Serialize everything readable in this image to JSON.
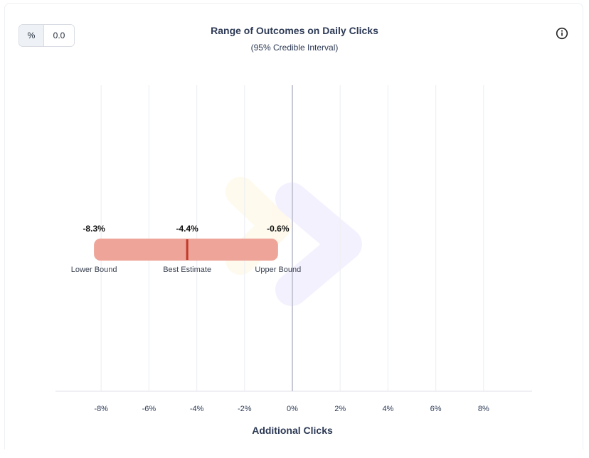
{
  "toggle": {
    "unit_label": "%",
    "value_label": "0.0"
  },
  "header": {
    "title": "Range of Outcomes on Daily Clicks",
    "subtitle": "(95% Credible Interval)",
    "info_icon": "info-icon"
  },
  "colors": {
    "bar_fill": "#eea498",
    "estimate_line": "#c0392b",
    "zero_line": "#c7cad6",
    "grid": "#eef0f4",
    "axis_text": "#2d3a55"
  },
  "chart_data": {
    "type": "interval",
    "title": "Range of Outcomes on Daily Clicks",
    "subtitle": "(95% Credible Interval)",
    "xlabel": "Additional Clicks",
    "ylabel": "",
    "xlim": [
      -10,
      10
    ],
    "xticks": [
      -8,
      -6,
      -4,
      -2,
      0,
      2,
      4,
      6,
      8
    ],
    "xtick_labels": [
      "-8%",
      "-6%",
      "-4%",
      "-2%",
      "0%",
      "2%",
      "4%",
      "6%",
      "8%"
    ],
    "grid": true,
    "interval": {
      "lower": -8.3,
      "estimate": -4.4,
      "upper": -0.6,
      "lower_value_label": "-8.3%",
      "estimate_value_label": "-4.4%",
      "upper_value_label": "-0.6%",
      "lower_name": "Lower Bound",
      "estimate_name": "Best Estimate",
      "upper_name": "Upper Bound"
    }
  }
}
